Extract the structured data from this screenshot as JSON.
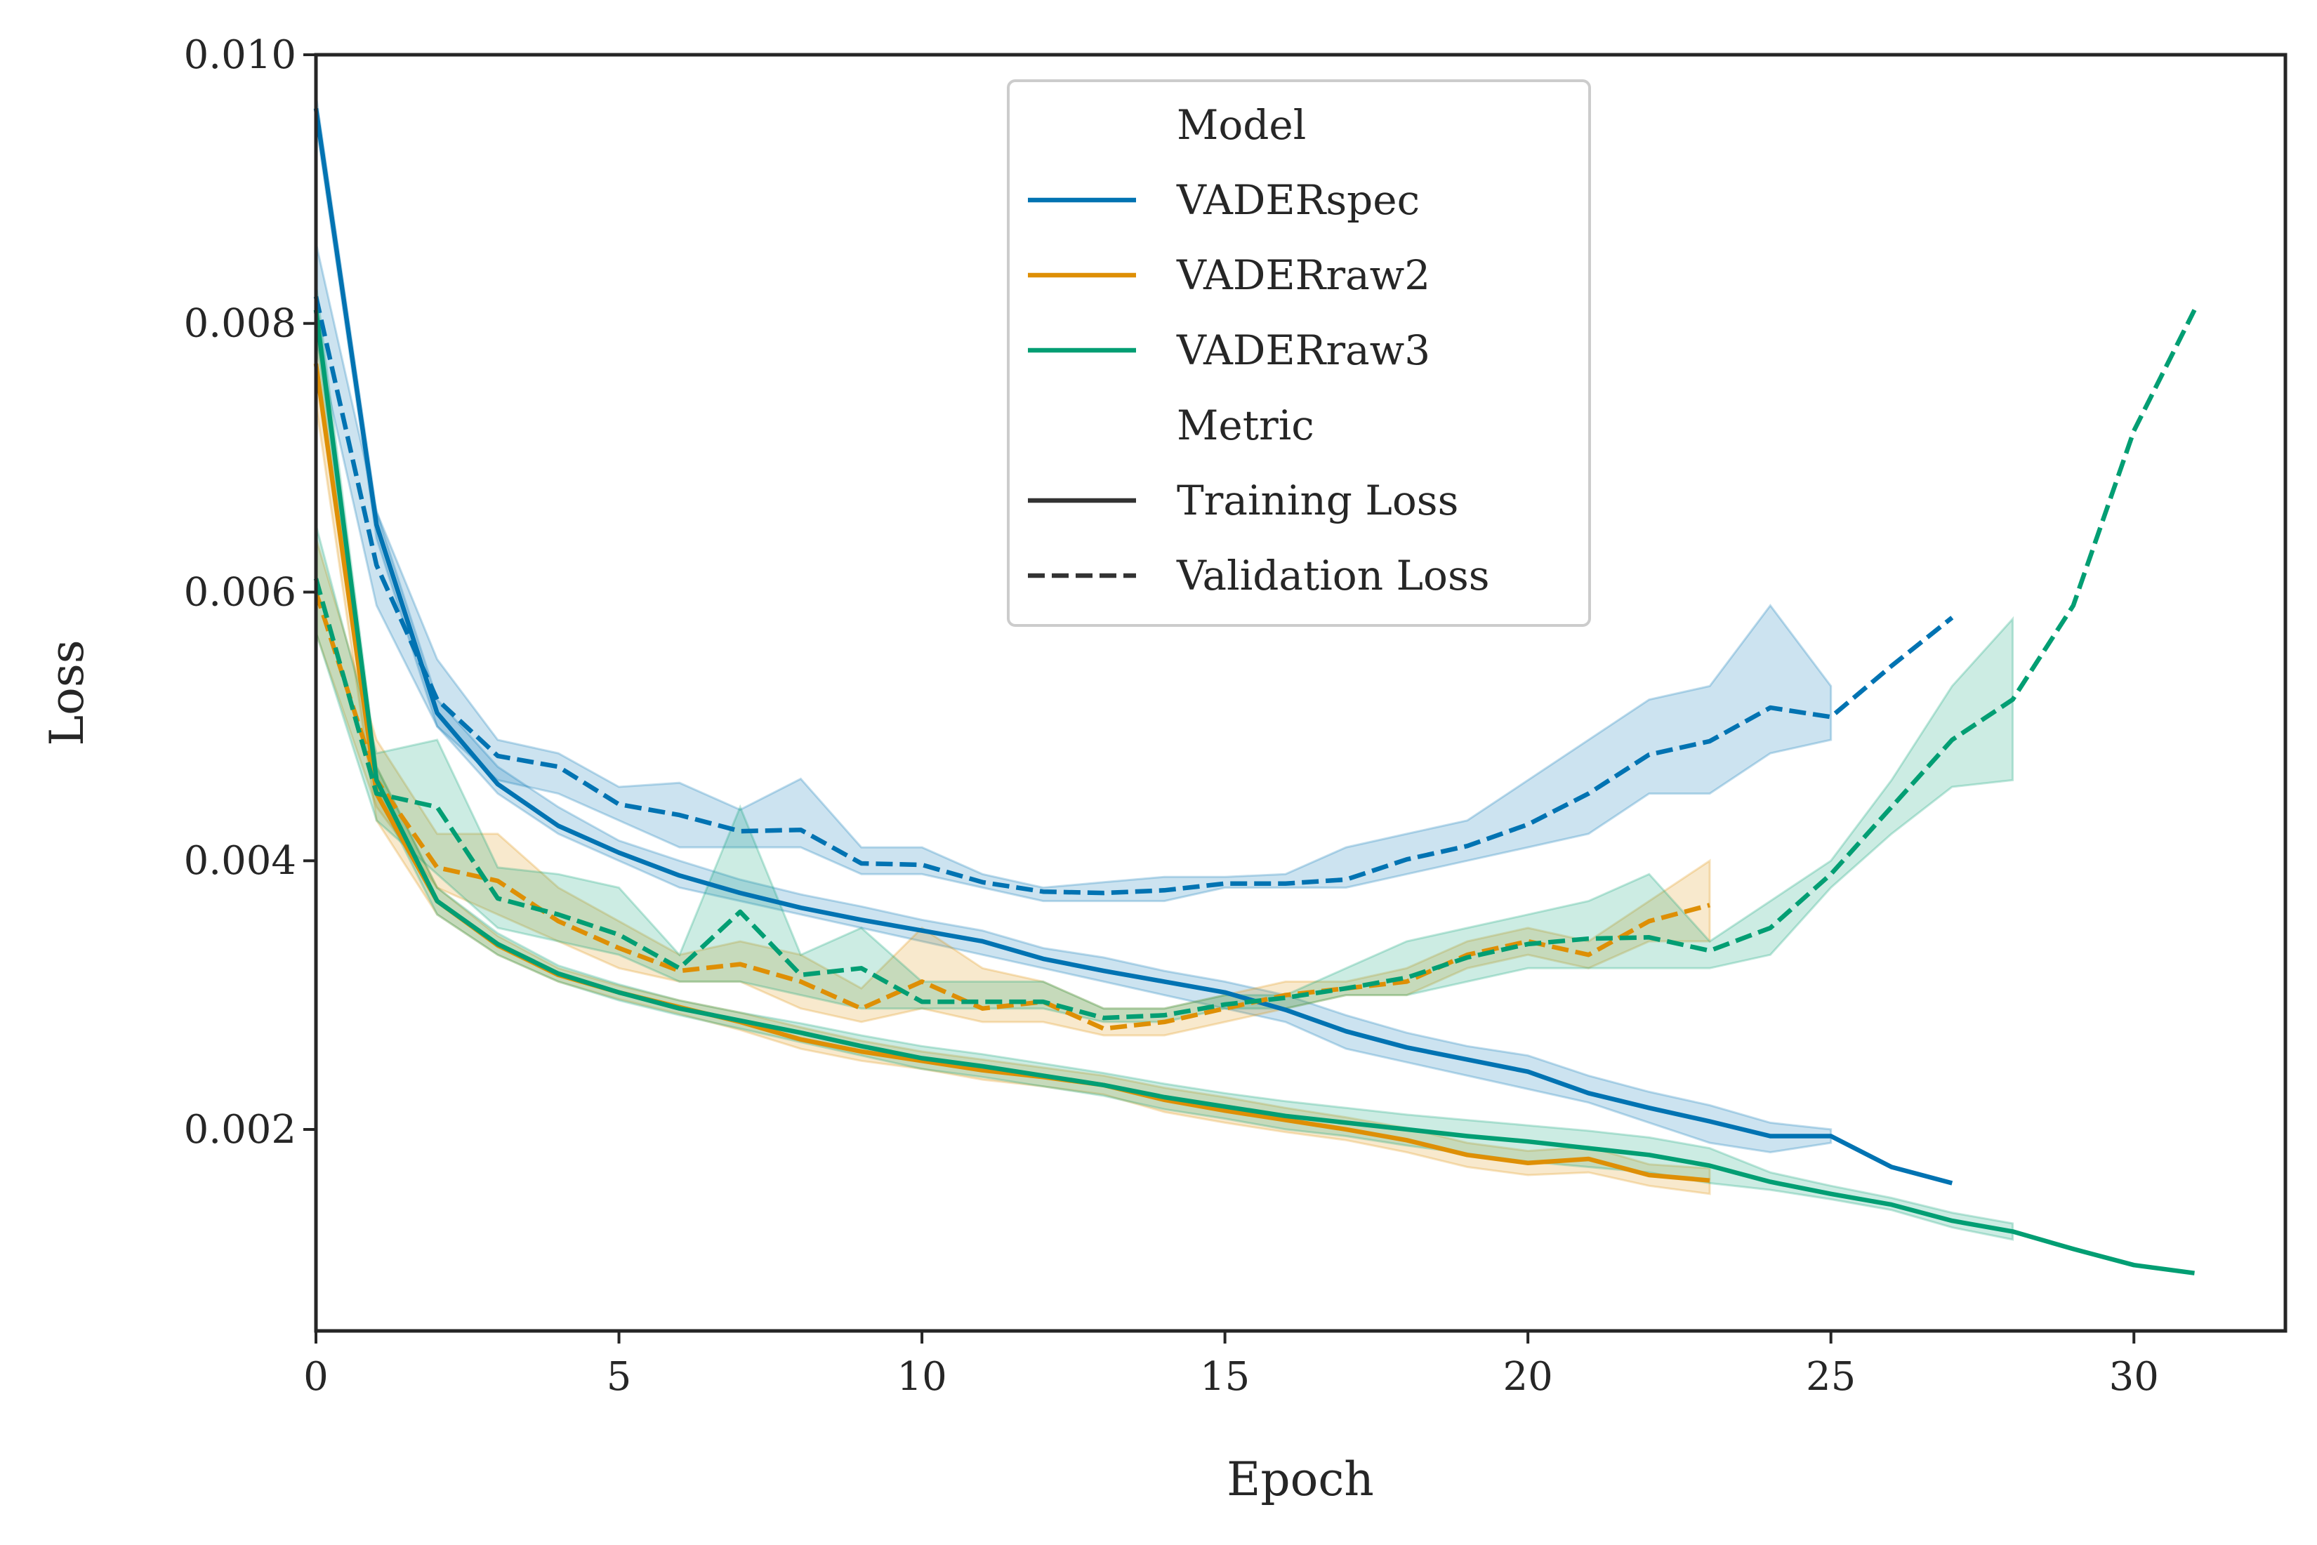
{
  "chart_data": {
    "type": "line",
    "title": "",
    "xlabel": "Epoch",
    "ylabel": "Loss",
    "xlim": [
      0,
      32.5
    ],
    "ylim": [
      0.0005,
      0.01
    ],
    "xticks": [
      0,
      5,
      10,
      15,
      20,
      25,
      30
    ],
    "yticks": [
      0.002,
      0.004,
      0.006,
      0.008,
      0.01
    ],
    "ytick_labels": [
      "0.002",
      "0.004",
      "0.006",
      "0.008",
      "0.010"
    ],
    "grid": false,
    "legend": {
      "position": "top-center",
      "model_title": "Model",
      "metric_title": "Metric",
      "models": [
        {
          "name": "VADERspec",
          "color": "#0173b2"
        },
        {
          "name": "VADERraw2",
          "color": "#de8f05"
        },
        {
          "name": "VADERraw3",
          "color": "#029e73"
        }
      ],
      "metrics": [
        {
          "name": "Training Loss",
          "style": "solid"
        },
        {
          "name": "Validation Loss",
          "style": "dashed"
        }
      ],
      "key_color": "#333333"
    },
    "series": [
      {
        "name": "VADERspec",
        "metric": "Validation Loss",
        "color": "#0173b2",
        "style": "dashed",
        "x": [
          0,
          1,
          2,
          3,
          4,
          5,
          6,
          7,
          8,
          9,
          10,
          11,
          12,
          13,
          14,
          15,
          16,
          17,
          18,
          19,
          20,
          21,
          22,
          23,
          24,
          25,
          26,
          27
        ],
        "values": [
          0.0082,
          0.0062,
          0.0052,
          0.00478,
          0.0047,
          0.00442,
          0.00434,
          0.00422,
          0.00423,
          0.00398,
          0.00397,
          0.00384,
          0.00377,
          0.00376,
          0.00378,
          0.00383,
          0.00383,
          0.00386,
          0.00401,
          0.00411,
          0.00427,
          0.0045,
          0.00479,
          0.00489,
          0.00514,
          0.00507,
          0.00545,
          0.00581
        ],
        "lower": [
          0.0079,
          0.0059,
          0.005,
          0.0046,
          0.0045,
          0.0043,
          0.0041,
          0.0041,
          0.0041,
          0.0039,
          0.0039,
          0.0038,
          0.0037,
          0.0037,
          0.0037,
          0.0038,
          0.0038,
          0.0038,
          0.0039,
          0.004,
          0.0041,
          0.0042,
          0.0045,
          0.0045,
          0.0048,
          0.0049,
          null,
          null
        ],
        "upper": [
          0.0086,
          0.0066,
          0.0055,
          0.0049,
          0.0048,
          0.00455,
          0.00458,
          0.00438,
          0.00461,
          0.0041,
          0.0041,
          0.0039,
          0.0038,
          0.00384,
          0.00388,
          0.00388,
          0.0039,
          0.0041,
          0.0042,
          0.0043,
          0.0046,
          0.0049,
          0.0052,
          0.0053,
          0.0059,
          0.0053,
          null,
          null
        ]
      },
      {
        "name": "VADERspec",
        "metric": "Training Loss",
        "color": "#0173b2",
        "style": "solid",
        "x": [
          0,
          1,
          2,
          3,
          4,
          5,
          6,
          7,
          8,
          9,
          10,
          11,
          12,
          13,
          14,
          15,
          16,
          17,
          18,
          19,
          20,
          21,
          22,
          23,
          24,
          25,
          26,
          27
        ],
        "values": [
          0.0096,
          0.0065,
          0.0051,
          0.00457,
          0.00426,
          0.00406,
          0.00389,
          0.00376,
          0.00365,
          0.00356,
          0.00348,
          0.0034,
          0.00327,
          0.00318,
          0.0031,
          0.00302,
          0.00289,
          0.00273,
          0.00261,
          0.00252,
          0.00243,
          0.00227,
          0.00216,
          0.00206,
          0.00195,
          0.00195,
          0.00172,
          0.0016
        ],
        "lower": [
          0.0095,
          0.0064,
          0.005,
          0.0045,
          0.0042,
          0.004,
          0.0038,
          0.0037,
          0.0036,
          0.0035,
          0.0034,
          0.0033,
          0.0032,
          0.0031,
          0.003,
          0.0029,
          0.0028,
          0.0026,
          0.0025,
          0.0024,
          0.0023,
          0.0022,
          0.00205,
          0.0019,
          0.00183,
          0.0019,
          null,
          null
        ],
        "upper": [
          0.0097,
          0.0066,
          0.0052,
          0.0047,
          0.0044,
          0.00415,
          0.004,
          0.00386,
          0.00375,
          0.00366,
          0.00356,
          0.00348,
          0.00335,
          0.00328,
          0.00318,
          0.0031,
          0.003,
          0.00285,
          0.00272,
          0.00262,
          0.00255,
          0.0024,
          0.00228,
          0.00218,
          0.00205,
          0.002,
          null,
          null
        ]
      },
      {
        "name": "VADERraw2",
        "metric": "Validation Loss",
        "color": "#de8f05",
        "style": "dashed",
        "x": [
          0,
          1,
          2,
          3,
          4,
          5,
          6,
          7,
          8,
          9,
          10,
          11,
          12,
          13,
          14,
          15,
          16,
          17,
          18,
          19,
          20,
          21,
          22,
          23
        ],
        "values": [
          0.006,
          0.0046,
          0.00395,
          0.00385,
          0.00355,
          0.00335,
          0.00318,
          0.00323,
          0.0031,
          0.0029,
          0.0031,
          0.0029,
          0.00295,
          0.00275,
          0.0028,
          0.0029,
          0.003,
          0.00305,
          0.0031,
          0.0033,
          0.0034,
          0.0033,
          0.00355,
          0.00367
        ],
        "lower": [
          0.0057,
          0.0044,
          0.0038,
          0.0036,
          0.0034,
          0.0032,
          0.0031,
          0.0031,
          0.0029,
          0.0028,
          0.0029,
          0.0028,
          0.0028,
          0.0027,
          0.0027,
          0.0028,
          0.0029,
          0.003,
          0.003,
          0.0032,
          0.0033,
          0.0032,
          0.0034,
          0.0034
        ],
        "upper": [
          0.0064,
          0.0049,
          0.0042,
          0.0042,
          0.0038,
          0.00355,
          0.0033,
          0.0034,
          0.0033,
          0.00305,
          0.0035,
          0.0032,
          0.0031,
          0.0029,
          0.0029,
          0.003,
          0.0031,
          0.0031,
          0.0032,
          0.0034,
          0.0035,
          0.0034,
          0.0037,
          0.004
        ]
      },
      {
        "name": "VADERraw2",
        "metric": "Training Loss",
        "color": "#de8f05",
        "style": "solid",
        "x": [
          0,
          1,
          2,
          3,
          4,
          5,
          6,
          7,
          8,
          9,
          10,
          11,
          12,
          13,
          14,
          15,
          16,
          17,
          18,
          19,
          20,
          21,
          22,
          23
        ],
        "values": [
          0.0077,
          0.0045,
          0.0037,
          0.00337,
          0.00315,
          0.00302,
          0.00291,
          0.0028,
          0.00267,
          0.00258,
          0.00251,
          0.00244,
          0.00239,
          0.00233,
          0.00222,
          0.00214,
          0.00207,
          0.002,
          0.00192,
          0.00181,
          0.00175,
          0.00178,
          0.00166,
          0.00162
        ],
        "lower": [
          0.0074,
          0.0043,
          0.0036,
          0.0033,
          0.0031,
          0.00297,
          0.00286,
          0.00274,
          0.0026,
          0.00251,
          0.00245,
          0.00237,
          0.00232,
          0.00226,
          0.00213,
          0.00205,
          0.00198,
          0.00192,
          0.00183,
          0.00172,
          0.00166,
          0.00168,
          0.00158,
          0.00152
        ],
        "upper": [
          0.008,
          0.0047,
          0.0038,
          0.00344,
          0.0032,
          0.00307,
          0.00296,
          0.00287,
          0.00276,
          0.00266,
          0.00258,
          0.00252,
          0.00246,
          0.0024,
          0.00231,
          0.00224,
          0.00216,
          0.00209,
          0.00201,
          0.0019,
          0.00184,
          0.00187,
          0.00174,
          0.00171
        ]
      },
      {
        "name": "VADERraw3",
        "metric": "Validation Loss",
        "color": "#029e73",
        "style": "dashed",
        "x": [
          0,
          1,
          2,
          3,
          4,
          5,
          6,
          7,
          8,
          9,
          10,
          11,
          12,
          13,
          14,
          15,
          16,
          17,
          18,
          19,
          20,
          21,
          22,
          23,
          24,
          25,
          26,
          27,
          28,
          29,
          30,
          31
        ],
        "values": [
          0.0061,
          0.0045,
          0.0044,
          0.00372,
          0.0036,
          0.00345,
          0.0032,
          0.00362,
          0.00315,
          0.0032,
          0.00295,
          0.00295,
          0.00295,
          0.00283,
          0.00285,
          0.00293,
          0.00298,
          0.00305,
          0.00313,
          0.00328,
          0.00338,
          0.00342,
          0.00343,
          0.00333,
          0.0035,
          0.0039,
          0.0044,
          0.0049,
          0.0052,
          0.0059,
          0.0072,
          0.0081
        ],
        "lower": [
          0.0057,
          0.0043,
          0.0039,
          0.0035,
          0.0034,
          0.0033,
          0.0031,
          0.0031,
          0.003,
          0.0029,
          0.0029,
          0.0029,
          0.0029,
          0.0028,
          0.0028,
          0.0029,
          0.0029,
          0.003,
          0.003,
          0.0031,
          0.0032,
          0.0032,
          0.0032,
          0.0032,
          0.0033,
          0.0038,
          0.0042,
          0.00455,
          0.0046,
          null,
          null,
          null
        ],
        "upper": [
          0.0065,
          0.0048,
          0.0049,
          0.00395,
          0.0039,
          0.0038,
          0.0033,
          0.0044,
          0.0033,
          0.0035,
          0.0031,
          0.0031,
          0.0031,
          0.0029,
          0.0029,
          0.003,
          0.003,
          0.0032,
          0.0034,
          0.0035,
          0.0036,
          0.0037,
          0.0039,
          0.0034,
          0.0037,
          0.004,
          0.0046,
          0.0053,
          0.0058,
          null,
          null,
          null
        ]
      },
      {
        "name": "VADERraw3",
        "metric": "Training Loss",
        "color": "#029e73",
        "style": "solid",
        "x": [
          0,
          1,
          2,
          3,
          4,
          5,
          6,
          7,
          8,
          9,
          10,
          11,
          12,
          13,
          14,
          15,
          16,
          17,
          18,
          19,
          20,
          21,
          22,
          23,
          24,
          25,
          26,
          27,
          28,
          29,
          30,
          31
        ],
        "values": [
          0.0081,
          0.0046,
          0.0037,
          0.00338,
          0.00316,
          0.00302,
          0.0029,
          0.00281,
          0.00272,
          0.00262,
          0.00253,
          0.00247,
          0.0024,
          0.00233,
          0.00224,
          0.00217,
          0.0021,
          0.00205,
          0.002,
          0.00195,
          0.00191,
          0.00186,
          0.00181,
          0.00173,
          0.00161,
          0.00152,
          0.00144,
          0.00132,
          0.00124,
          0.00111,
          0.00099,
          0.00093
        ],
        "lower": [
          0.0079,
          0.0045,
          0.0036,
          0.0033,
          0.0031,
          0.00296,
          0.00285,
          0.00275,
          0.00265,
          0.00255,
          0.00245,
          0.00239,
          0.00232,
          0.00225,
          0.00215,
          0.00208,
          0.002,
          0.00195,
          0.00188,
          0.00182,
          0.00176,
          0.00172,
          0.00168,
          0.0016,
          0.00155,
          0.00148,
          0.0014,
          0.00127,
          0.00118,
          null,
          null,
          null
        ],
        "upper": [
          0.0083,
          0.0047,
          0.0038,
          0.00346,
          0.00322,
          0.00308,
          0.00296,
          0.00287,
          0.00279,
          0.0027,
          0.00262,
          0.00256,
          0.00249,
          0.00242,
          0.00234,
          0.00227,
          0.00221,
          0.00216,
          0.00211,
          0.00207,
          0.00203,
          0.00199,
          0.00194,
          0.00186,
          0.00168,
          0.00158,
          0.00149,
          0.00138,
          0.0013,
          null,
          null,
          null
        ]
      }
    ]
  }
}
